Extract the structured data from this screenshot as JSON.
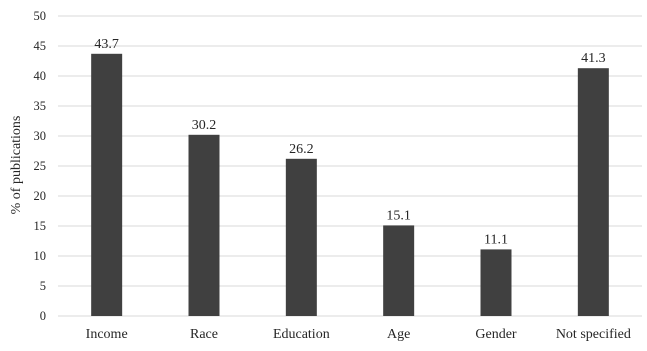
{
  "chart_data": {
    "type": "bar",
    "title": "",
    "xlabel": "",
    "ylabel": "% of publications",
    "categories": [
      "Income",
      "Race",
      "Education",
      "Age",
      "Gender",
      "Not specified"
    ],
    "values": [
      43.7,
      30.2,
      26.2,
      15.1,
      11.1,
      41.3
    ],
    "data_labels": [
      "43.7",
      "30.2",
      "26.2",
      "15.1",
      "11.1",
      "41.3"
    ],
    "ylim": [
      0,
      50
    ],
    "yticks": [
      0,
      5,
      10,
      15,
      20,
      25,
      30,
      35,
      40,
      45,
      50
    ],
    "grid": "horizontal",
    "legend": "none",
    "colors": {
      "bar": "#404040",
      "grid": "#d9d9d9",
      "text": "#262626"
    }
  }
}
